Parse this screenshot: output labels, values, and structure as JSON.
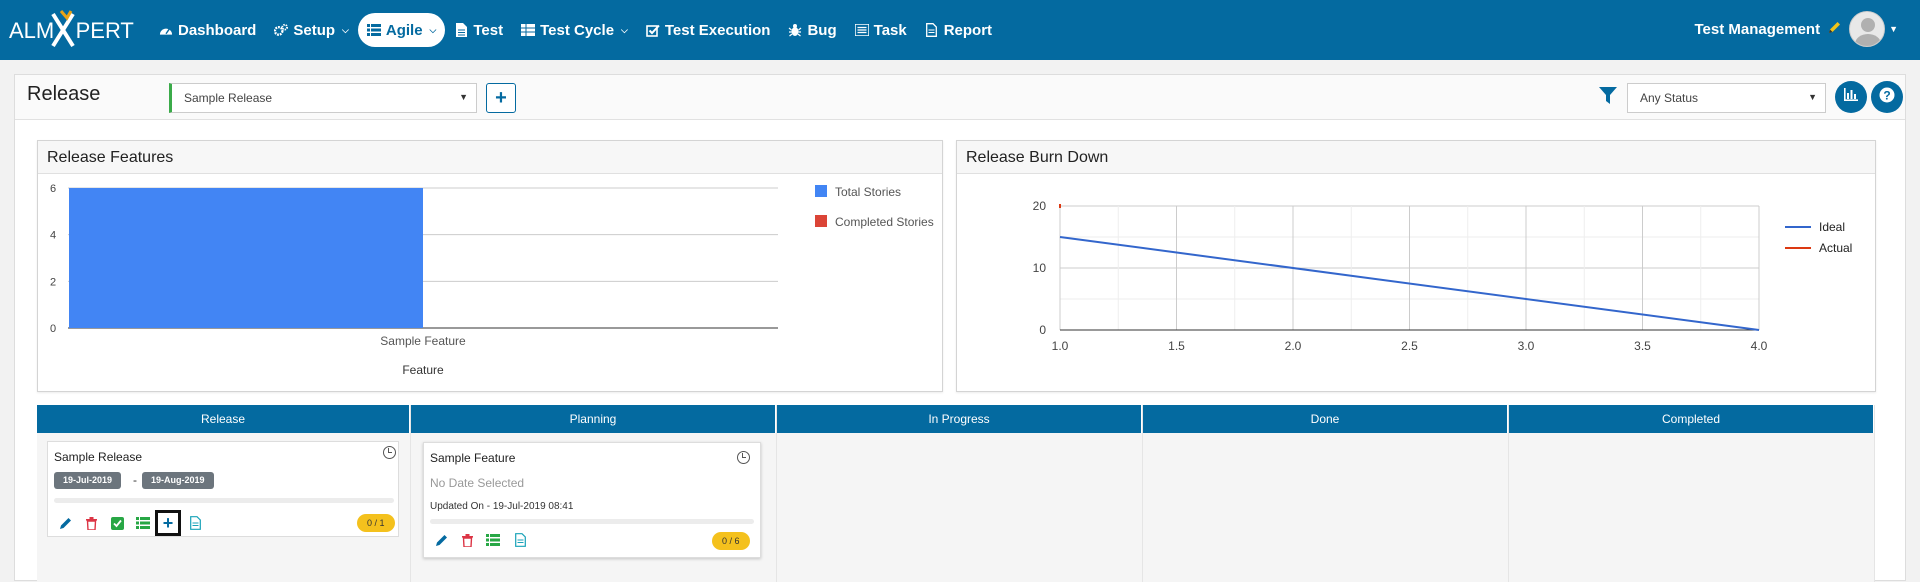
{
  "app": {
    "logo_text_left": "ALM",
    "logo_text_right": "PERT",
    "logo_x": "X"
  },
  "nav": {
    "items": [
      {
        "label": "Dashboard",
        "icon": "tachometer-icon"
      },
      {
        "label": "Setup",
        "icon": "gears-icon",
        "dropdown": true
      },
      {
        "label": "Agile",
        "icon": "list-icon",
        "dropdown": true,
        "active": true
      },
      {
        "label": "Test",
        "icon": "file-text-icon"
      },
      {
        "label": "Test Cycle",
        "icon": "table-icon",
        "dropdown": true
      },
      {
        "label": "Test Execution",
        "icon": "check-square-icon"
      },
      {
        "label": "Bug",
        "icon": "bug-icon"
      },
      {
        "label": "Task",
        "icon": "tasks-icon"
      },
      {
        "label": "Report",
        "icon": "file-icon"
      }
    ],
    "user_label": "Test Management"
  },
  "page": {
    "title": "Release",
    "release_select_value": "Sample Release",
    "status_select_value": "Any Status"
  },
  "features_panel": {
    "title": "Release Features"
  },
  "burndown_panel": {
    "title": "Release Burn Down"
  },
  "chart_data": [
    {
      "type": "bar",
      "title": "Release Features",
      "xlabel": "Feature",
      "ylabel": "",
      "categories": [
        "Sample Feature"
      ],
      "series": [
        {
          "name": "Total Stories",
          "values": [
            6
          ],
          "color": "#4285f4"
        },
        {
          "name": "Completed Stories",
          "values": [
            0
          ],
          "color": "#db4437"
        }
      ],
      "ylim": [
        0,
        6
      ],
      "yticks": [
        "0",
        "2",
        "4",
        "6"
      ],
      "grid": true,
      "legend": "right"
    },
    {
      "type": "line",
      "title": "Release Burn Down",
      "xlabel": "",
      "ylabel": "",
      "xlim": [
        1.0,
        4.0
      ],
      "ylim": [
        0,
        20
      ],
      "xticks": [
        "1.0",
        "1.5",
        "2.0",
        "2.5",
        "3.0",
        "3.5",
        "4.0"
      ],
      "yticks": [
        "0",
        "10",
        "20"
      ],
      "series": [
        {
          "name": "Ideal",
          "x": [
            1.0,
            4.0
          ],
          "y": [
            15,
            0
          ],
          "color": "#3366cc"
        },
        {
          "name": "Actual",
          "x": [
            1.0
          ],
          "y": [
            20
          ],
          "color": "#dc3912"
        }
      ],
      "grid": true,
      "legend": "right"
    }
  ],
  "kanban": {
    "columns": [
      "Release",
      "Planning",
      "In Progress",
      "Done",
      "Completed"
    ],
    "release_card": {
      "title": "Sample Release",
      "start_date": "19-Jul-2019",
      "dash": "-",
      "end_date": "19-Aug-2019",
      "count_badge": "0 / 1"
    },
    "feature_card": {
      "title": "Sample Feature",
      "date_text": "No Date Selected",
      "updated_text": "Updated On - 19-Jul-2019 08:41",
      "count_badge": "0 / 6"
    }
  },
  "colors": {
    "nav_bg": "#046aa0",
    "accent_green": "#3bab4a",
    "badge_yellow": "#f4c11d"
  }
}
